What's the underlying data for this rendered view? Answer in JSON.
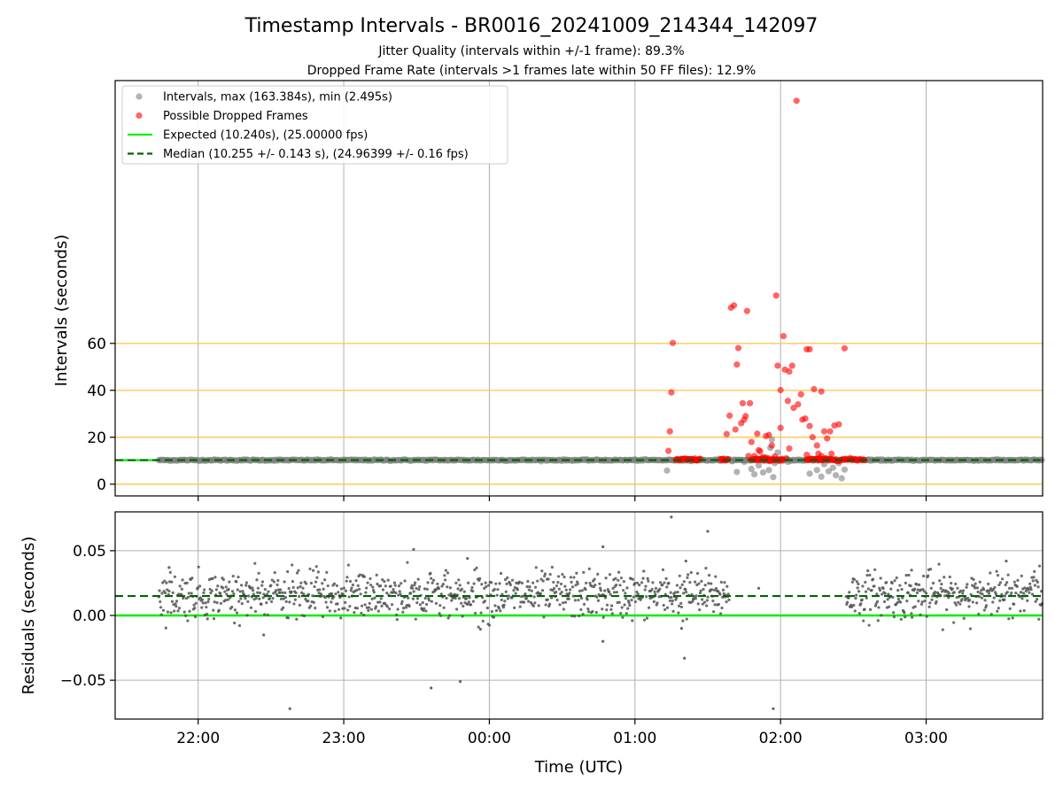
{
  "title": "Timestamp Intervals - BR0016_20241009_214344_142097",
  "subtitle_line1": "Jitter Quality (intervals within +/-1 frame): 89.3%",
  "subtitle_line2": "Dropped Frame Rate (intervals >1 frames late within 50 FF files): 12.9%",
  "colors": {
    "intervals": "#808080",
    "dropped": "#ff0000",
    "expected": "#00ee00",
    "median": "#006400",
    "reference_lines": "#ffc85a",
    "grid": "#b0b0b0"
  },
  "chart_data": [
    {
      "type": "scatter",
      "panel": "top",
      "ylabel": "Intervals (seconds)",
      "x_domain_hours": [
        21.43,
        27.8
      ],
      "ylim": [
        -5,
        172
      ],
      "yticks": [
        0,
        20,
        40,
        60
      ],
      "reference_lines": [
        0,
        20,
        40,
        60
      ],
      "grid_x": true,
      "legend_position": "upper-left",
      "legend": [
        "Intervals, max (163.384s), min (2.495s)",
        "Possible Dropped Frames",
        "Expected (10.240s), (25.00000 fps)",
        "Median (10.255 +/- 0.143 s), (24.96399 +/- 0.16 fps)"
      ],
      "expected_value": 10.24,
      "median_value": 10.255,
      "normal_interval_spans_hours": [
        [
          21.73,
          26.33
        ],
        [
          26.58,
          27.8
        ]
      ],
      "normal_interval_value": 10.25,
      "gray_outliers": [
        [
          25.22,
          5.8
        ],
        [
          25.58,
          10.8
        ],
        [
          25.7,
          5.2
        ],
        [
          25.75,
          9.5
        ],
        [
          25.8,
          6.5
        ],
        [
          25.82,
          4.2
        ],
        [
          25.85,
          8.0
        ],
        [
          25.88,
          5.0
        ],
        [
          25.9,
          11.5
        ],
        [
          25.92,
          6.0
        ],
        [
          25.95,
          3.0
        ],
        [
          25.96,
          9.0
        ],
        [
          25.98,
          13.5
        ],
        [
          25.94,
          19.0
        ],
        [
          25.93,
          15.5
        ],
        [
          26.05,
          9.5
        ],
        [
          26.2,
          4.5
        ],
        [
          26.25,
          6.0
        ],
        [
          26.28,
          3.2
        ],
        [
          26.3,
          8.5
        ],
        [
          26.33,
          5.5
        ],
        [
          26.36,
          7.0
        ],
        [
          26.38,
          3.8
        ],
        [
          26.4,
          9.0
        ],
        [
          26.42,
          2.5
        ],
        [
          26.44,
          6.2
        ]
      ],
      "dropped_points": [
        [
          25.26,
          60.2
        ],
        [
          25.25,
          39.1
        ],
        [
          25.24,
          22.5
        ],
        [
          25.23,
          14.2
        ],
        [
          25.63,
          21.4
        ],
        [
          25.65,
          29.2
        ],
        [
          25.66,
          75.2
        ],
        [
          25.68,
          76.2
        ],
        [
          25.69,
          23.3
        ],
        [
          25.7,
          51.0
        ],
        [
          25.71,
          58.0
        ],
        [
          25.73,
          26.0
        ],
        [
          25.74,
          34.5
        ],
        [
          25.75,
          27.5
        ],
        [
          25.76,
          29.0
        ],
        [
          25.77,
          73.8
        ],
        [
          25.79,
          34.5
        ],
        [
          25.8,
          18.0
        ],
        [
          25.82,
          12.0
        ],
        [
          25.84,
          21.5
        ],
        [
          25.86,
          14.0
        ],
        [
          25.88,
          11.5
        ],
        [
          25.9,
          20.5
        ],
        [
          25.92,
          21.0
        ],
        [
          25.94,
          16.5
        ],
        [
          25.97,
          80.4
        ],
        [
          25.98,
          50.5
        ],
        [
          26.0,
          24.0
        ],
        [
          26.0,
          40.1
        ],
        [
          26.02,
          63.1
        ],
        [
          26.03,
          48.8
        ],
        [
          26.05,
          35.5
        ],
        [
          26.06,
          48.0
        ],
        [
          26.08,
          50.5
        ],
        [
          26.09,
          32.5
        ],
        [
          26.11,
          163.4
        ],
        [
          26.12,
          34.0
        ],
        [
          26.14,
          38.3
        ],
        [
          26.15,
          27.5
        ],
        [
          26.17,
          28.0
        ],
        [
          26.18,
          57.5
        ],
        [
          26.2,
          24.8
        ],
        [
          26.2,
          57.5
        ],
        [
          26.22,
          20.0
        ],
        [
          26.23,
          40.5
        ],
        [
          26.25,
          16.5
        ],
        [
          26.26,
          13.0
        ],
        [
          26.28,
          39.5
        ],
        [
          26.3,
          22.5
        ],
        [
          26.32,
          19.5
        ],
        [
          26.34,
          22.5
        ],
        [
          26.37,
          25.0
        ],
        [
          26.4,
          25.5
        ],
        [
          26.44,
          57.9
        ],
        [
          26.06,
          15.2
        ],
        [
          25.85,
          14.5
        ],
        [
          25.78,
          12.0
        ],
        [
          26.18,
          12.5
        ],
        [
          26.28,
          12.0
        ],
        [
          26.35,
          13.0
        ],
        [
          25.96,
          11.8
        ],
        [
          26.04,
          11.0
        ]
      ],
      "dropped_baseline_spans_hours": [
        [
          25.28,
          25.45
        ],
        [
          25.59,
          25.64
        ],
        [
          25.8,
          26.02
        ],
        [
          26.18,
          26.58
        ]
      ],
      "dropped_baseline_value": 10.5
    },
    {
      "type": "scatter",
      "panel": "bottom",
      "ylabel": "Residuals (seconds)",
      "xlabel": "Time (UTC)",
      "x_domain_hours": [
        21.43,
        27.8
      ],
      "ylim": [
        -0.08,
        0.08
      ],
      "yticks": [
        -0.05,
        0.0,
        0.05
      ],
      "ytick_labels": [
        "−0.05",
        "0.00",
        "0.05"
      ],
      "xticks_hours": [
        22,
        23,
        24,
        25,
        26,
        27
      ],
      "xtick_labels": [
        "22:00",
        "23:00",
        "00:00",
        "01:00",
        "02:00",
        "03:00"
      ],
      "expected_value": 0.0,
      "median_value": 0.015,
      "residual_spans_hours": [
        [
          21.73,
          25.65
        ],
        [
          26.45,
          27.8
        ]
      ],
      "residual_center": 0.016,
      "residual_spread": 0.009,
      "outliers": [
        [
          21.8,
          0.037
        ],
        [
          22.45,
          -0.015
        ],
        [
          22.63,
          -0.072
        ],
        [
          23.48,
          0.051
        ],
        [
          23.6,
          -0.056
        ],
        [
          23.8,
          -0.051
        ],
        [
          23.85,
          0.044
        ],
        [
          24.78,
          0.053
        ],
        [
          24.78,
          -0.02
        ],
        [
          25.25,
          0.076
        ],
        [
          25.32,
          -0.01
        ],
        [
          25.35,
          0.042
        ],
        [
          25.34,
          -0.033
        ],
        [
          25.5,
          0.065
        ],
        [
          25.85,
          0.021
        ],
        [
          25.95,
          -0.072
        ],
        [
          26.9,
          0.035
        ],
        [
          27.55,
          0.042
        ]
      ]
    }
  ]
}
